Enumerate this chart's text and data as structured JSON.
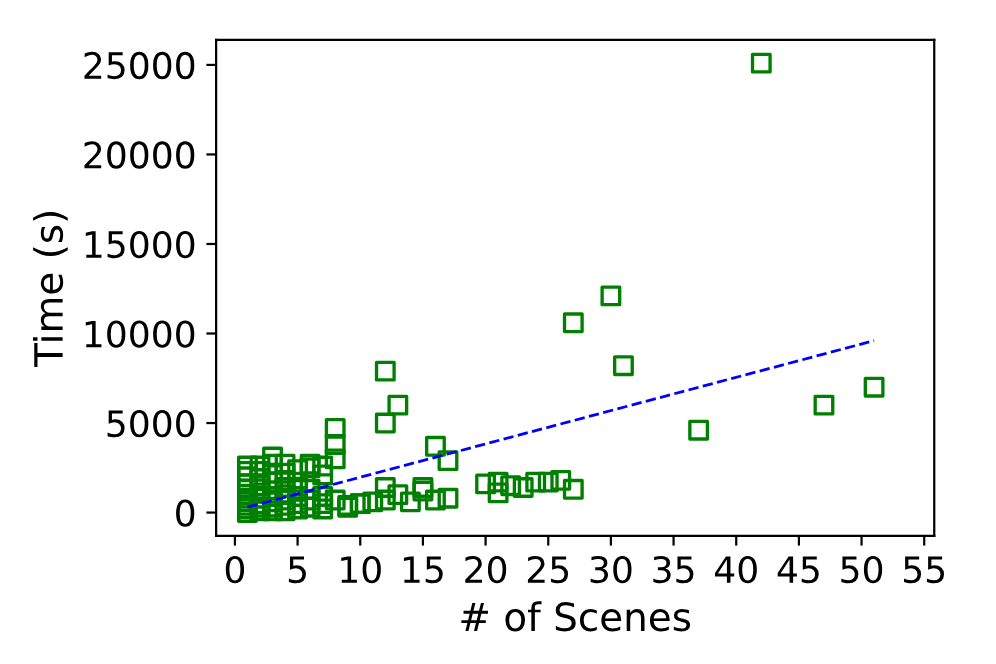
{
  "chart_data": {
    "type": "scatter",
    "xlabel": "# of Scenes",
    "ylabel": "Time (s)",
    "xlim": [
      -1.5,
      55.8
    ],
    "ylim": [
      -1300,
      26400
    ],
    "xticks": [
      0,
      5,
      10,
      15,
      20,
      25,
      30,
      35,
      40,
      45,
      50,
      55
    ],
    "yticks": [
      0,
      5000,
      10000,
      15000,
      20000,
      25000
    ],
    "grid": false,
    "series": [
      {
        "color": "#008000",
        "marker": "square",
        "x": [
          42,
          30,
          27,
          31,
          12,
          13,
          12,
          37,
          47,
          51,
          8,
          8,
          8,
          16,
          17,
          27,
          10,
          11,
          12,
          12,
          13,
          14,
          15,
          15,
          16,
          17,
          20,
          21,
          21,
          22,
          23,
          24,
          25,
          26,
          9,
          10,
          6,
          7,
          7,
          7,
          8,
          9,
          1,
          1,
          1,
          1,
          1,
          1,
          1,
          1,
          1,
          1,
          2,
          2,
          2,
          2,
          2,
          2,
          2,
          2,
          2,
          3,
          3,
          3,
          3,
          3,
          3,
          3,
          3,
          4,
          4,
          4,
          4,
          4,
          4,
          4,
          4,
          5,
          5,
          5,
          5,
          5,
          5,
          6,
          6,
          6,
          6,
          7,
          7
        ],
        "values": [
          25100,
          12100,
          10600,
          8200,
          7900,
          6000,
          5000,
          4600,
          6000,
          7000,
          4700,
          3800,
          3000,
          3700,
          2900,
          1300,
          500,
          600,
          1400,
          700,
          1000,
          600,
          1400,
          1200,
          700,
          800,
          1600,
          1700,
          1100,
          1500,
          1400,
          1700,
          1700,
          1800,
          400,
          500,
          2700,
          2600,
          2100,
          900,
          700,
          300,
          0,
          200,
          400,
          600,
          800,
          1300,
          1600,
          2000,
          2300,
          2600,
          100,
          300,
          500,
          800,
          1100,
          1500,
          1900,
          2300,
          2600,
          100,
          300,
          600,
          900,
          1700,
          2200,
          2700,
          3100,
          100,
          400,
          700,
          1000,
          1400,
          1800,
          2200,
          2700,
          200,
          500,
          900,
          1300,
          1700,
          2400,
          300,
          700,
          1300,
          2500,
          200,
          500
        ]
      },
      {
        "type": "line",
        "color": "#0000ff",
        "line_style": "dashed",
        "x": [
          1,
          51
        ],
        "values": [
          300,
          9600
        ]
      }
    ]
  }
}
